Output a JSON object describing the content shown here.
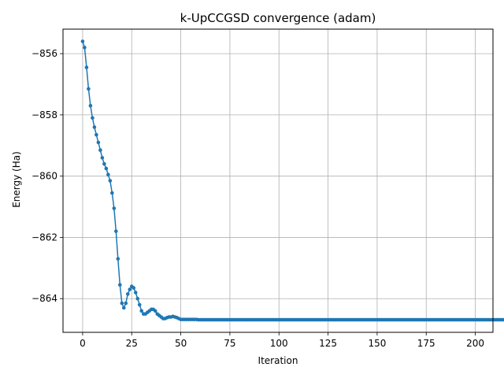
{
  "chart_data": {
    "type": "line",
    "title": "k-UpCCGSD convergence (adam)",
    "xlabel": "Iteration",
    "ylabel": "Energy (Ha)",
    "xlim": [
      -10,
      209
    ],
    "ylim": [
      -865.1,
      -855.2
    ],
    "xticks": [
      0,
      25,
      50,
      75,
      100,
      125,
      150,
      175,
      200
    ],
    "yticks": [
      -864,
      -862,
      -860,
      -858,
      -856
    ],
    "ytick_labels": [
      "−864",
      "−862",
      "−860",
      "−858",
      "−856"
    ],
    "grid": true,
    "color": "#1f77b4",
    "marker": "circle",
    "series": [
      {
        "x_start": 0,
        "x_step": 1,
        "values": [
          -855.6,
          -855.8,
          -856.45,
          -857.15,
          -857.7,
          -858.1,
          -858.4,
          -858.65,
          -858.9,
          -859.15,
          -859.4,
          -859.6,
          -859.75,
          -859.95,
          -860.15,
          -860.55,
          -861.05,
          -861.8,
          -862.7,
          -863.55,
          -864.15,
          -864.3,
          -864.15,
          -863.85,
          -863.7,
          -863.6,
          -863.65,
          -863.8,
          -864.0,
          -864.2,
          -864.4,
          -864.5,
          -864.5,
          -864.45,
          -864.4,
          -864.35,
          -864.35,
          -864.4,
          -864.5,
          -864.55,
          -864.6,
          -864.65,
          -864.65,
          -864.62,
          -864.6,
          -864.6,
          -864.58,
          -864.6,
          -864.62,
          -864.65,
          -864.68,
          -864.68,
          -864.68,
          -864.68,
          -864.68,
          -864.68,
          -864.68,
          -864.68,
          -864.68,
          -864.69,
          -864.69,
          -864.69,
          -864.69,
          -864.69,
          -864.69,
          -864.69,
          -864.69,
          -864.69,
          -864.69,
          -864.69,
          -864.69,
          -864.69,
          -864.69,
          -864.69,
          -864.69,
          -864.69,
          -864.69,
          -864.69,
          -864.69,
          -864.69,
          -864.69,
          -864.69,
          -864.69,
          -864.69,
          -864.69,
          -864.69,
          -864.69,
          -864.69,
          -864.69,
          -864.69,
          -864.69,
          -864.69,
          -864.69,
          -864.69,
          -864.69,
          -864.69,
          -864.69,
          -864.69,
          -864.69,
          -864.69,
          -864.69,
          -864.69,
          -864.69,
          -864.69,
          -864.69,
          -864.69,
          -864.69,
          -864.69,
          -864.69,
          -864.69,
          -864.69,
          -864.69,
          -864.69,
          -864.69,
          -864.69,
          -864.69,
          -864.69,
          -864.69,
          -864.69,
          -864.69,
          -864.69,
          -864.69,
          -864.69,
          -864.69,
          -864.69,
          -864.69,
          -864.69,
          -864.69,
          -864.69,
          -864.69,
          -864.69,
          -864.69,
          -864.69,
          -864.69,
          -864.69,
          -864.69,
          -864.69,
          -864.69,
          -864.69,
          -864.69,
          -864.69,
          -864.69,
          -864.69,
          -864.69,
          -864.69,
          -864.69,
          -864.69,
          -864.69,
          -864.69,
          -864.69,
          -864.69,
          -864.69,
          -864.69,
          -864.69,
          -864.69,
          -864.69,
          -864.69,
          -864.69,
          -864.69,
          -864.69,
          -864.69,
          -864.69,
          -864.69,
          -864.69,
          -864.69,
          -864.69,
          -864.69,
          -864.69,
          -864.69,
          -864.69,
          -864.69,
          -864.69,
          -864.69,
          -864.69,
          -864.69,
          -864.69,
          -864.69,
          -864.69,
          -864.69,
          -864.69,
          -864.69,
          -864.69,
          -864.69,
          -864.69,
          -864.69,
          -864.69,
          -864.69,
          -864.69,
          -864.69,
          -864.69,
          -864.69,
          -864.69,
          -864.69,
          -864.69,
          -864.69,
          -864.69,
          -864.69,
          -864.69,
          -864.69,
          -864.69,
          -864.69,
          -864.69,
          -864.69,
          -864.69,
          -864.69,
          -864.69,
          -864.69,
          -864.69,
          -864.69,
          -864.69,
          -864.69,
          -864.69,
          -864.69,
          -864.69,
          -864.69,
          -864.69,
          -864.69,
          -864.69,
          -864.69
        ]
      }
    ]
  }
}
